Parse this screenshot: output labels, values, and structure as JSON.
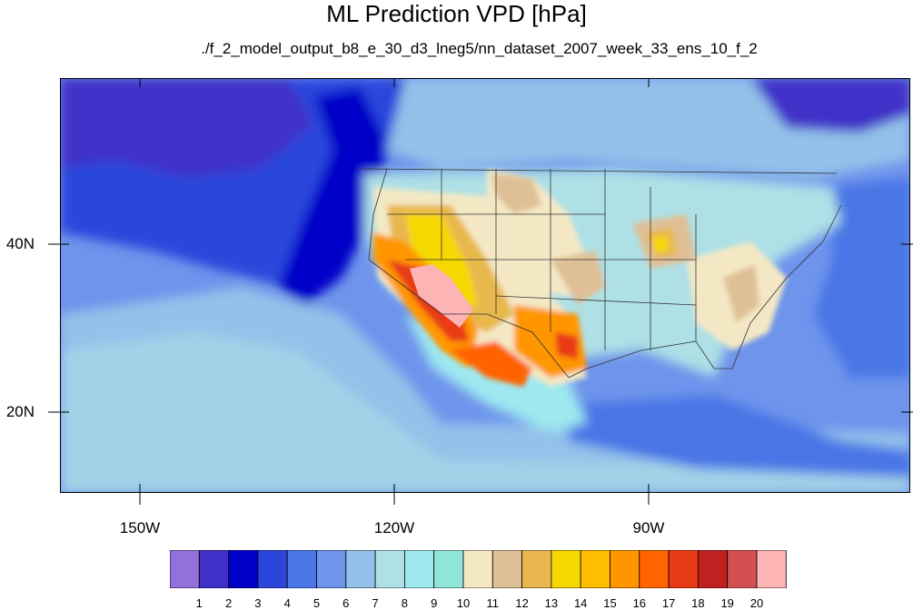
{
  "title": "ML Prediction VPD [hPa]",
  "subtitle": "./f_2_model_output_b8_e_30_d3_lneg5/nn_dataset_2007_week_33_ens_10_f_2",
  "map": {
    "lat_labels": [
      "40N",
      "20N"
    ],
    "lon_labels": [
      "150W",
      "120W",
      "90W"
    ]
  },
  "colorbar": {
    "labels": [
      "1",
      "2",
      "3",
      "4",
      "5",
      "6",
      "7",
      "8",
      "9",
      "10",
      "11",
      "12",
      "13",
      "14",
      "15",
      "16",
      "17",
      "18",
      "19",
      "20"
    ],
    "colors": [
      "#9370db",
      "#4030c8",
      "#0000c8",
      "#2c46dc",
      "#4a76e6",
      "#6e94ec",
      "#93c1ea",
      "#aee0e6",
      "#9ee8f0",
      "#8fe6d8",
      "#f4e8c4",
      "#dfc096",
      "#e8b84e",
      "#f5d800",
      "#ffbe00",
      "#ff9600",
      "#ff6400",
      "#e83a14",
      "#c02020",
      "#d45050",
      "#fcb4b4"
    ]
  }
}
